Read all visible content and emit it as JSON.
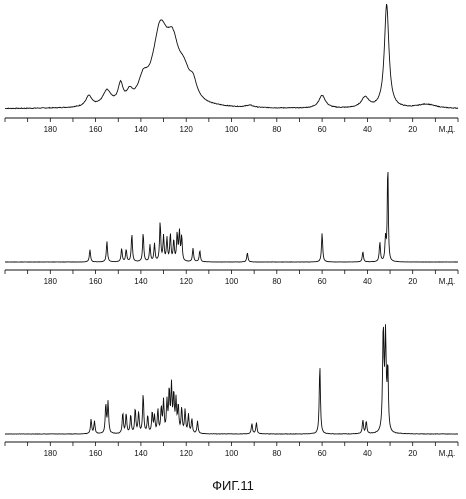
{
  "figure_label": "ФИГ.11",
  "chart_data": [
    {
      "type": "line",
      "name": "top-spectrum",
      "xlabel": "М.Д.",
      "xlim": [
        200,
        0
      ],
      "reversed_x": true,
      "xticks": [
        180,
        160,
        140,
        120,
        100,
        80,
        60,
        40,
        20
      ],
      "ylim": [
        0,
        100
      ],
      "baseline": 1,
      "noise": 0.35,
      "peaks": [
        {
          "x": 163,
          "h": 10,
          "w": 1.6
        },
        {
          "x": 155,
          "h": 14,
          "w": 2.2
        },
        {
          "x": 149,
          "h": 18,
          "w": 1.3
        },
        {
          "x": 145,
          "h": 9,
          "w": 1.5
        },
        {
          "x": 139,
          "h": 18,
          "w": 2.5
        },
        {
          "x": 131.5,
          "h": 66,
          "w": 4.0
        },
        {
          "x": 126,
          "h": 46,
          "w": 3.5
        },
        {
          "x": 121,
          "h": 22,
          "w": 3.0
        },
        {
          "x": 117,
          "h": 15,
          "w": 2.0
        },
        {
          "x": 92,
          "h": 2,
          "w": 2.0
        },
        {
          "x": 60,
          "h": 12,
          "w": 1.8
        },
        {
          "x": 41,
          "h": 10,
          "w": 2.0
        },
        {
          "x": 31.5,
          "h": 98,
          "w": 1.2
        },
        {
          "x": 14,
          "h": 4,
          "w": 5.0
        }
      ]
    },
    {
      "type": "line",
      "name": "middle-spectrum",
      "xlabel": "М.Д.",
      "xlim": [
        200,
        0
      ],
      "reversed_x": true,
      "xticks": [
        180,
        160,
        140,
        120,
        100,
        80,
        60,
        40,
        20
      ],
      "ylim": [
        0,
        100
      ],
      "baseline": 0,
      "noise": 0.12,
      "peaks": [
        {
          "x": 162.5,
          "h": 12,
          "w": 0.3
        },
        {
          "x": 155,
          "h": 20,
          "w": 0.3
        },
        {
          "x": 148.5,
          "h": 13,
          "w": 0.3
        },
        {
          "x": 146.5,
          "h": 12,
          "w": 0.3
        },
        {
          "x": 144,
          "h": 27,
          "w": 0.3
        },
        {
          "x": 139,
          "h": 28,
          "w": 0.3
        },
        {
          "x": 136,
          "h": 16,
          "w": 0.3
        },
        {
          "x": 134,
          "h": 17,
          "w": 0.3
        },
        {
          "x": 131.5,
          "h": 38,
          "w": 0.3
        },
        {
          "x": 130,
          "h": 24,
          "w": 0.3
        },
        {
          "x": 128.5,
          "h": 22,
          "w": 0.3
        },
        {
          "x": 127,
          "h": 26,
          "w": 0.3
        },
        {
          "x": 125.5,
          "h": 20,
          "w": 0.3
        },
        {
          "x": 124,
          "h": 26,
          "w": 0.3
        },
        {
          "x": 123,
          "h": 28,
          "w": 0.3
        },
        {
          "x": 122,
          "h": 24,
          "w": 0.3
        },
        {
          "x": 117,
          "h": 13,
          "w": 0.3
        },
        {
          "x": 114,
          "h": 11,
          "w": 0.3
        },
        {
          "x": 93,
          "h": 9,
          "w": 0.3
        },
        {
          "x": 60,
          "h": 28,
          "w": 0.3
        },
        {
          "x": 42,
          "h": 10,
          "w": 0.3
        },
        {
          "x": 34.5,
          "h": 19,
          "w": 0.3
        },
        {
          "x": 32,
          "h": 22,
          "w": 0.3
        },
        {
          "x": 31,
          "h": 97,
          "w": 0.25
        }
      ]
    },
    {
      "type": "line",
      "name": "bottom-spectrum",
      "xlabel": "М.Д.",
      "xlim": [
        200,
        0
      ],
      "reversed_x": true,
      "xticks": [
        180,
        160,
        140,
        120,
        100,
        80,
        60,
        40,
        20
      ],
      "ylim": [
        0,
        100
      ],
      "baseline": 0,
      "noise": 0.2,
      "peaks": [
        {
          "x": 162,
          "h": 14,
          "w": 0.3
        },
        {
          "x": 160.5,
          "h": 12,
          "w": 0.3
        },
        {
          "x": 155.5,
          "h": 28,
          "w": 0.3
        },
        {
          "x": 154.5,
          "h": 30,
          "w": 0.3
        },
        {
          "x": 148,
          "h": 20,
          "w": 0.3
        },
        {
          "x": 146.5,
          "h": 19,
          "w": 0.3
        },
        {
          "x": 144.5,
          "h": 18,
          "w": 0.3
        },
        {
          "x": 142.5,
          "h": 24,
          "w": 0.3
        },
        {
          "x": 141,
          "h": 20,
          "w": 0.3
        },
        {
          "x": 139,
          "h": 38,
          "w": 0.3
        },
        {
          "x": 137,
          "h": 17,
          "w": 0.3
        },
        {
          "x": 135,
          "h": 20,
          "w": 0.3
        },
        {
          "x": 134,
          "h": 16,
          "w": 0.3
        },
        {
          "x": 132.5,
          "h": 22,
          "w": 0.3
        },
        {
          "x": 131,
          "h": 24,
          "w": 0.3
        },
        {
          "x": 130,
          "h": 30,
          "w": 0.3
        },
        {
          "x": 128.5,
          "h": 29,
          "w": 0.3
        },
        {
          "x": 127.5,
          "h": 40,
          "w": 0.3
        },
        {
          "x": 126.5,
          "h": 44,
          "w": 0.3
        },
        {
          "x": 125.5,
          "h": 36,
          "w": 0.3
        },
        {
          "x": 124.5,
          "h": 30,
          "w": 0.3
        },
        {
          "x": 123.5,
          "h": 26,
          "w": 0.3
        },
        {
          "x": 122,
          "h": 24,
          "w": 0.3
        },
        {
          "x": 120.5,
          "h": 22,
          "w": 0.3
        },
        {
          "x": 119,
          "h": 18,
          "w": 0.3
        },
        {
          "x": 117.5,
          "h": 14,
          "w": 0.3
        },
        {
          "x": 115,
          "h": 12,
          "w": 0.3
        },
        {
          "x": 91,
          "h": 10,
          "w": 0.3
        },
        {
          "x": 89,
          "h": 11,
          "w": 0.3
        },
        {
          "x": 61,
          "h": 67,
          "w": 0.3
        },
        {
          "x": 42,
          "h": 13,
          "w": 0.3
        },
        {
          "x": 40.5,
          "h": 12,
          "w": 0.3
        },
        {
          "x": 33,
          "h": 98,
          "w": 0.35
        },
        {
          "x": 32,
          "h": 90,
          "w": 0.35
        },
        {
          "x": 31,
          "h": 60,
          "w": 0.3
        }
      ]
    }
  ]
}
